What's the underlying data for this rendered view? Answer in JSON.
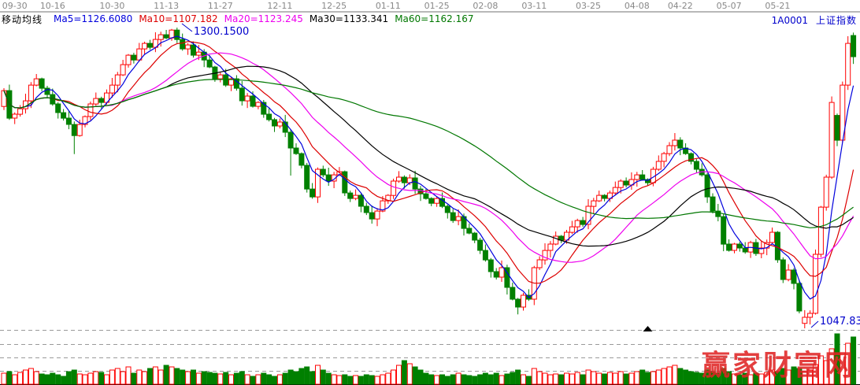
{
  "header": {
    "code": "1A0001",
    "name": "上证指数",
    "color": "#0000cc"
  },
  "legend": {
    "title": "移动均线",
    "items": [
      {
        "label": "Ma5",
        "value": "1126.6080",
        "color": "#0000dd"
      },
      {
        "label": "Ma10",
        "value": "1107.182",
        "color": "#dd0000"
      },
      {
        "label": "Ma20",
        "value": "1123.245",
        "color": "#ee00ee"
      },
      {
        "label": "Ma30",
        "value": "1133.341",
        "color": "#000000"
      },
      {
        "label": "Ma60",
        "value": "1162.167",
        "color": "#007700"
      }
    ]
  },
  "annotations": {
    "peak": {
      "text": "1300.1500",
      "color": "#0000cc"
    },
    "low": {
      "text": "1047.83",
      "color": "#0000cc"
    },
    "marker": {
      "shape": "triangle-up",
      "color": "#000000",
      "index": 119
    }
  },
  "watermark": {
    "text": "赢家财富网",
    "color": "#e02525"
  },
  "chart_data": {
    "type": "candlestick",
    "title": "",
    "xlabel": "",
    "ylabel": "",
    "ylim": [
      1047.83,
      1303.5
    ],
    "volume_ylim": [
      0,
      70
    ],
    "grid": "dashed-horizontal",
    "legend_position": "top-left",
    "up_color": "#ff0000",
    "down_color": "#008000",
    "ma_periods": [
      5,
      10,
      20,
      30,
      60
    ],
    "ma_colors": [
      "#0000dd",
      "#dd0000",
      "#ee00ee",
      "#000000",
      "#007700"
    ],
    "date_ticks": [
      {
        "label": "09-30",
        "i": 2
      },
      {
        "label": "10-16",
        "i": 9
      },
      {
        "label": "10-30",
        "i": 20
      },
      {
        "label": "11-13",
        "i": 30
      },
      {
        "label": "11-27",
        "i": 40
      },
      {
        "label": "12-11",
        "i": 51
      },
      {
        "label": "12-25",
        "i": 61
      },
      {
        "label": "01-11",
        "i": 71
      },
      {
        "label": "01-25",
        "i": 80
      },
      {
        "label": "02-08",
        "i": 89
      },
      {
        "label": "03-11",
        "i": 98
      },
      {
        "label": "03-25",
        "i": 108
      },
      {
        "label": "04-08",
        "i": 117
      },
      {
        "label": "04-22",
        "i": 125
      },
      {
        "label": "05-07",
        "i": 134
      },
      {
        "label": "05-21",
        "i": 143
      }
    ],
    "closes": [
      1247.3,
      1224.2,
      1227.5,
      1232.1,
      1238.7,
      1251.9,
      1257.2,
      1249.3,
      1244.0,
      1236.1,
      1228.8,
      1224.2,
      1218.9,
      1209.6,
      1218.9,
      1225.5,
      1236.1,
      1240.7,
      1237.4,
      1245.3,
      1251.9,
      1260.5,
      1269.1,
      1277.0,
      1273.0,
      1282.3,
      1286.9,
      1283.6,
      1290.2,
      1294.2,
      1291.5,
      1298.1,
      1290.2,
      1282.3,
      1285.6,
      1277.0,
      1279.6,
      1273.0,
      1267.1,
      1257.2,
      1260.5,
      1251.9,
      1257.2,
      1249.3,
      1238.7,
      1242.7,
      1234.1,
      1237.4,
      1227.5,
      1222.9,
      1217.6,
      1220.9,
      1212.3,
      1199.1,
      1194.4,
      1184.6,
      1164.7,
      1158.1,
      1181.3,
      1176.6,
      1171.4,
      1176.6,
      1179.2,
      1161.4,
      1156.8,
      1159.4,
      1150.2,
      1144.9,
      1139.6,
      1146.2,
      1154.8,
      1159.4,
      1171.4,
      1174.7,
      1170.0,
      1174.0,
      1164.7,
      1160.7,
      1156.8,
      1152.8,
      1156.8,
      1150.2,
      1144.9,
      1138.3,
      1141.6,
      1131.7,
      1127.7,
      1121.8,
      1113.2,
      1105.3,
      1095.4,
      1090.8,
      1098.7,
      1082.2,
      1072.3,
      1065.7,
      1075.6,
      1072.3,
      1098.7,
      1105.3,
      1113.2,
      1118.5,
      1125.1,
      1121.8,
      1128.4,
      1133.0,
      1138.3,
      1135.0,
      1150.2,
      1154.8,
      1159.4,
      1156.8,
      1161.4,
      1166.0,
      1171.4,
      1168.1,
      1172.7,
      1176.6,
      1172.7,
      1170.0,
      1181.3,
      1187.9,
      1194.4,
      1201.1,
      1205.7,
      1199.1,
      1194.4,
      1187.9,
      1181.3,
      1176.6,
      1158.1,
      1146.2,
      1141.6,
      1118.5,
      1113.2,
      1118.5,
      1115.2,
      1111.9,
      1119.8,
      1110.6,
      1115.2,
      1119.8,
      1128.4,
      1105.3,
      1088.8,
      1096.7,
      1085.5,
      1062.4,
      1057.1,
      1060.4,
      1109.9,
      1149.5,
      1174.7,
      1237.4,
      1205.7,
      1251.9,
      1286.9,
      1275.7
    ],
    "open_overrides": {
      "0": 1234.0,
      "148": 1052.0,
      "154": 1226.5,
      "157": 1293.5
    },
    "high_overrides": {
      "32": 1300.15
    },
    "low_overrides": {
      "13": 1194.0,
      "53": 1176.0,
      "95": 1059.5,
      "148": 1047.83
    },
    "wick_up_pattern": [
      2,
      5,
      1.5,
      3,
      6,
      2.5,
      4,
      1
    ],
    "wick_down_pattern": [
      3,
      1.5,
      5,
      2,
      4,
      6,
      1,
      2.5
    ],
    "volumes": [
      14,
      16,
      12,
      15,
      18,
      20,
      16,
      13,
      12,
      14,
      12,
      10,
      16,
      18,
      13,
      12,
      14,
      16,
      15,
      12,
      18,
      20,
      16,
      22,
      14,
      18,
      16,
      20,
      22,
      18,
      24,
      22,
      20,
      18,
      16,
      18,
      14,
      16,
      15,
      14,
      13,
      15,
      12,
      14,
      16,
      12,
      10,
      12,
      14,
      12,
      10,
      12,
      14,
      18,
      16,
      20,
      22,
      16,
      24,
      18,
      14,
      12,
      11,
      12,
      10,
      11,
      10,
      12,
      11,
      10,
      12,
      14,
      18,
      24,
      30,
      26,
      22,
      18,
      14,
      12,
      11,
      12,
      10,
      12,
      14,
      12,
      11,
      10,
      12,
      14,
      12,
      14,
      11,
      13,
      15,
      18,
      12,
      10,
      20,
      16,
      14,
      12,
      13,
      12,
      14,
      13,
      15,
      12,
      18,
      16,
      14,
      13,
      15,
      14,
      16,
      13,
      14,
      16,
      18,
      15,
      16,
      18,
      20,
      22,
      24,
      20,
      18,
      16,
      15,
      14,
      18,
      16,
      14,
      20,
      16,
      13,
      12,
      14,
      12,
      14,
      13,
      15,
      18,
      16,
      20,
      18,
      22,
      20,
      16,
      18,
      25,
      36,
      30,
      45,
      64,
      40,
      52,
      60
    ]
  }
}
